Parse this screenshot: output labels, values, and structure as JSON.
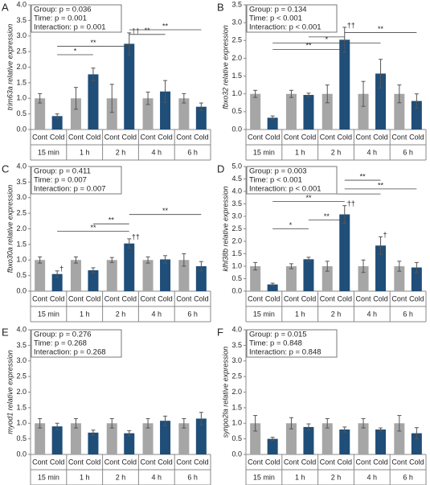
{
  "chart_data": [
    {
      "type": "bar",
      "letter": "A",
      "ylabel": "trim63a relative expression",
      "stats": [
        "Group: p = 0.036",
        "Time: p = 0.001",
        "Interaction: p = 0.001"
      ],
      "categories": [
        "15 min",
        "1 h",
        "2 h",
        "4 h",
        "6 h"
      ],
      "series": [
        {
          "name": "Cont",
          "color": "#a6a6a6",
          "values": [
            1.0,
            1.0,
            1.0,
            1.0,
            1.0
          ],
          "errors": [
            0.15,
            0.35,
            0.45,
            0.2,
            0.15
          ],
          "annotations": [
            null,
            null,
            null,
            null,
            null
          ]
        },
        {
          "name": "Cold",
          "color": "#1f4e79",
          "values": [
            0.43,
            1.77,
            2.75,
            1.22,
            0.73
          ],
          "errors": [
            0.07,
            0.2,
            0.35,
            0.35,
            0.12
          ],
          "annotations": [
            null,
            null,
            "††",
            null,
            null
          ]
        }
      ],
      "brackets": [
        {
          "label": "*",
          "y": 2.4,
          "from": [
            "15 min",
            "Cold"
          ],
          "to": [
            "1 h",
            "Cold"
          ]
        },
        {
          "label": "**",
          "y": 2.67,
          "from": [
            "15 min",
            "Cold"
          ],
          "to": [
            "2 h",
            "Cold"
          ]
        },
        {
          "label": "**",
          "y": 3.05,
          "from": [
            "2 h",
            "Cold"
          ],
          "to": [
            "4 h",
            "Cold"
          ]
        },
        {
          "label": "**",
          "y": 3.2,
          "from": [
            "2 h",
            "Cold"
          ],
          "to": [
            "6 h",
            "Cold"
          ]
        }
      ],
      "ylim": [
        0,
        4
      ],
      "yticks": [
        {
          "value": 0,
          "label": "0.0"
        },
        {
          "value": 0.5,
          "label": "0.5"
        },
        {
          "value": 1,
          "label": "1.0"
        },
        {
          "value": 1.5,
          "label": "1.5"
        },
        {
          "value": 2,
          "label": "2.0"
        },
        {
          "value": 2.5,
          "label": "2.5"
        },
        {
          "value": 3,
          "label": "3.0"
        },
        {
          "value": 3.5,
          "label": "3.5"
        },
        {
          "value": 4,
          "label": "4.0"
        }
      ]
    },
    {
      "type": "bar",
      "letter": "B",
      "ylabel": "fbxo32 relative expression",
      "stats": [
        "Group: p = 0.134",
        "Time: p < 0.001",
        "Interaction: p < 0.001"
      ],
      "categories": [
        "15 min",
        "1 h",
        "2 h",
        "4 h",
        "6 h"
      ],
      "series": [
        {
          "name": "Cont",
          "color": "#a6a6a6",
          "values": [
            1.0,
            1.0,
            1.0,
            1.0,
            1.0
          ],
          "errors": [
            0.1,
            0.1,
            0.25,
            0.35,
            0.25
          ],
          "annotations": [
            null,
            null,
            null,
            null,
            null
          ]
        },
        {
          "name": "Cold",
          "color": "#1f4e79",
          "values": [
            0.33,
            0.97,
            2.52,
            1.57,
            0.8
          ],
          "errors": [
            0.05,
            0.05,
            0.35,
            0.4,
            0.2
          ],
          "annotations": [
            null,
            null,
            "††",
            null,
            null
          ]
        }
      ],
      "brackets": [
        {
          "label": "**",
          "y": 2.72,
          "from": [
            "2 h",
            "Cold"
          ],
          "to": [
            "6 h",
            "Cold"
          ]
        },
        {
          "label": "**",
          "y": 2.6,
          "from": [
            "1 h",
            "Cold"
          ],
          "to": [
            "2 h",
            "Cold"
          ]
        },
        {
          "label": "*",
          "y": 2.43,
          "from": [
            "15 min",
            "Cold"
          ],
          "to": [
            "4 h",
            "Cold"
          ]
        },
        {
          "label": "**",
          "y": 2.25,
          "from": [
            "15 min",
            "Cold"
          ],
          "to": [
            "2 h",
            "Cold"
          ]
        }
      ],
      "ylim": [
        0,
        3.5
      ],
      "yticks": [
        {
          "value": 0,
          "label": "0.0"
        },
        {
          "value": 0.5,
          "label": "0.5"
        },
        {
          "value": 1,
          "label": "1.0"
        },
        {
          "value": 1.5,
          "label": "1.5"
        },
        {
          "value": 2,
          "label": "2.0"
        },
        {
          "value": 2.5,
          "label": "2.5"
        },
        {
          "value": 3,
          "label": "3.0"
        },
        {
          "value": 3.5,
          "label": "3.5"
        }
      ]
    },
    {
      "type": "bar",
      "letter": "C",
      "ylabel": "fbxo30a relative expression",
      "stats": [
        "Group: p = 0.411",
        "Time: p = 0.007",
        "Interaction: p = 0.007"
      ],
      "categories": [
        "15 min",
        "1 h",
        "2 h",
        "4 h",
        "6 h"
      ],
      "series": [
        {
          "name": "Cont",
          "color": "#a6a6a6",
          "values": [
            1.0,
            1.0,
            1.0,
            1.0,
            1.0
          ],
          "errors": [
            0.1,
            0.1,
            0.08,
            0.1,
            0.2
          ],
          "annotations": [
            null,
            null,
            null,
            null,
            null
          ]
        },
        {
          "name": "Cold",
          "color": "#1f4e79",
          "values": [
            0.55,
            0.67,
            1.53,
            1.02,
            0.8
          ],
          "errors": [
            0.1,
            0.08,
            0.15,
            0.12,
            0.15
          ],
          "annotations": [
            "†",
            null,
            "††",
            null,
            null
          ]
        }
      ],
      "brackets": [
        {
          "label": "**",
          "y": 2.46,
          "from": [
            "2 h",
            "Cold"
          ],
          "to": [
            "6 h",
            "Cold"
          ]
        },
        {
          "label": "**",
          "y": 2.16,
          "from": [
            "1 h",
            "Cold"
          ],
          "to": [
            "2 h",
            "Cold"
          ]
        },
        {
          "label": "**",
          "y": 1.92,
          "from": [
            "15 min",
            "Cold"
          ],
          "to": [
            "2 h",
            "Cold"
          ]
        }
      ],
      "ylim": [
        0,
        4
      ],
      "yticks": [
        {
          "value": 0,
          "label": "0.0"
        },
        {
          "value": 0.5,
          "label": "0.5"
        },
        {
          "value": 1,
          "label": "1.0"
        },
        {
          "value": 1.5,
          "label": "1.5"
        },
        {
          "value": 2,
          "label": "2.0"
        },
        {
          "value": 2.5,
          "label": "2.5"
        },
        {
          "value": 3,
          "label": "3.0"
        },
        {
          "value": 3.5,
          "label": "3.5"
        },
        {
          "value": 4,
          "label": "4.0"
        }
      ]
    },
    {
      "type": "bar",
      "letter": "D",
      "ylabel": "klhl38b relative expression",
      "stats": [
        "Group: p = 0.003",
        "Time: p < 0.001",
        "Interaction: p < 0.001"
      ],
      "categories": [
        "15 min",
        "1 h",
        "2 h",
        "4 h",
        "6 h"
      ],
      "series": [
        {
          "name": "Cont",
          "color": "#a6a6a6",
          "values": [
            1.0,
            1.0,
            1.0,
            1.0,
            1.0
          ],
          "errors": [
            0.15,
            0.1,
            0.2,
            0.25,
            0.2
          ],
          "annotations": [
            null,
            null,
            null,
            null,
            null
          ]
        },
        {
          "name": "Cold",
          "color": "#1f4e79",
          "values": [
            0.27,
            1.28,
            3.08,
            1.83,
            0.95
          ],
          "errors": [
            0.05,
            0.08,
            0.35,
            0.35,
            0.2
          ],
          "annotations": [
            null,
            null,
            "††",
            "†",
            null
          ]
        }
      ],
      "brackets": [
        {
          "label": "**",
          "y": 4.45,
          "from": [
            "2 h",
            "Cold"
          ],
          "to": [
            "4 h",
            "Cold"
          ]
        },
        {
          "label": "**",
          "y": 4.1,
          "from": [
            "2 h",
            "Cold"
          ],
          "to": [
            "6 h",
            "Cold"
          ]
        },
        {
          "label": "**",
          "y": 3.9,
          "from": [
            "15 min",
            "Cold"
          ],
          "to": [
            "4 h",
            "Cold"
          ]
        },
        {
          "label": "**",
          "y": 3.6,
          "from": [
            "15 min",
            "Cold"
          ],
          "to": [
            "2 h",
            "Cold"
          ]
        },
        {
          "label": "**",
          "y": 2.85,
          "from": [
            "1 h",
            "Cold"
          ],
          "to": [
            "2 h",
            "Cold"
          ]
        },
        {
          "label": "*",
          "y": 2.5,
          "from": [
            "15 min",
            "Cold"
          ],
          "to": [
            "1 h",
            "Cold"
          ]
        }
      ],
      "ylim": [
        0,
        5
      ],
      "yticks": [
        {
          "value": 0,
          "label": "0.0"
        },
        {
          "value": 0.5,
          "label": "0.5"
        },
        {
          "value": 1,
          "label": "1.0"
        },
        {
          "value": 1.5,
          "label": "1.5"
        },
        {
          "value": 2,
          "label": "2.0"
        },
        {
          "value": 2.5,
          "label": "2.5"
        },
        {
          "value": 3,
          "label": "3.0"
        },
        {
          "value": 3.5,
          "label": "3.5"
        },
        {
          "value": 4,
          "label": "4.0"
        },
        {
          "value": 4.5,
          "label": "4.5"
        },
        {
          "value": 5,
          "label": "5.0"
        }
      ]
    },
    {
      "type": "bar",
      "letter": "E",
      "ylabel": "myod1 relative expression",
      "stats": [
        "Group: p = 0.276",
        "Time: p = 0.268",
        "Interaction: p = 0.268"
      ],
      "categories": [
        "15 min",
        "1 h",
        "2 h",
        "4 h",
        "6 h"
      ],
      "series": [
        {
          "name": "Cont",
          "color": "#a6a6a6",
          "values": [
            1.0,
            1.0,
            1.0,
            1.0,
            1.0
          ],
          "errors": [
            0.15,
            0.15,
            0.15,
            0.15,
            0.15
          ],
          "annotations": [
            null,
            null,
            null,
            null,
            null
          ]
        },
        {
          "name": "Cold",
          "color": "#1f4e79",
          "values": [
            0.9,
            0.7,
            0.68,
            1.08,
            1.15
          ],
          "errors": [
            0.1,
            0.08,
            0.08,
            0.15,
            0.2
          ],
          "annotations": [
            null,
            null,
            null,
            null,
            null
          ]
        }
      ],
      "brackets": [],
      "ylim": [
        0,
        4
      ],
      "yticks": [
        {
          "value": 0,
          "label": "0.0"
        },
        {
          "value": 0.5,
          "label": "0.5"
        },
        {
          "value": 1,
          "label": "1.0"
        },
        {
          "value": 1.5,
          "label": "1.5"
        },
        {
          "value": 2,
          "label": "2.0"
        },
        {
          "value": 2.5,
          "label": "2.5"
        },
        {
          "value": 3,
          "label": "3.0"
        },
        {
          "value": 3.5,
          "label": "3.5"
        },
        {
          "value": 4,
          "label": "4.0"
        }
      ]
    },
    {
      "type": "bar",
      "letter": "F",
      "ylabel": "synpo2la relative expression",
      "stats": [
        "Group: p = 0.015",
        "Time: p = 0.848",
        "Interaction: p = 0.848"
      ],
      "categories": [
        "15 min",
        "1 h",
        "2 h",
        "4 h",
        "6 h"
      ],
      "series": [
        {
          "name": "Cont",
          "color": "#a6a6a6",
          "values": [
            1.0,
            1.0,
            1.0,
            1.0,
            1.0
          ],
          "errors": [
            0.25,
            0.18,
            0.15,
            0.15,
            0.25
          ],
          "annotations": [
            null,
            null,
            null,
            null,
            null
          ]
        },
        {
          "name": "Cold",
          "color": "#1f4e79",
          "values": [
            0.5,
            0.88,
            0.8,
            0.8,
            0.68
          ],
          "errors": [
            0.05,
            0.1,
            0.08,
            0.05,
            0.18
          ],
          "annotations": [
            null,
            null,
            null,
            null,
            null
          ]
        }
      ],
      "brackets": [],
      "ylim": [
        0,
        4
      ],
      "yticks": [
        {
          "value": 0,
          "label": "0.0"
        },
        {
          "value": 0.5,
          "label": "0.5"
        },
        {
          "value": 1,
          "label": "1.0"
        },
        {
          "value": 1.5,
          "label": "1.5"
        },
        {
          "value": 2,
          "label": "2.0"
        },
        {
          "value": 2.5,
          "label": "2.5"
        },
        {
          "value": 3,
          "label": "3.0"
        },
        {
          "value": 3.5,
          "label": "3.5"
        },
        {
          "value": 4,
          "label": "4.0"
        }
      ]
    }
  ]
}
